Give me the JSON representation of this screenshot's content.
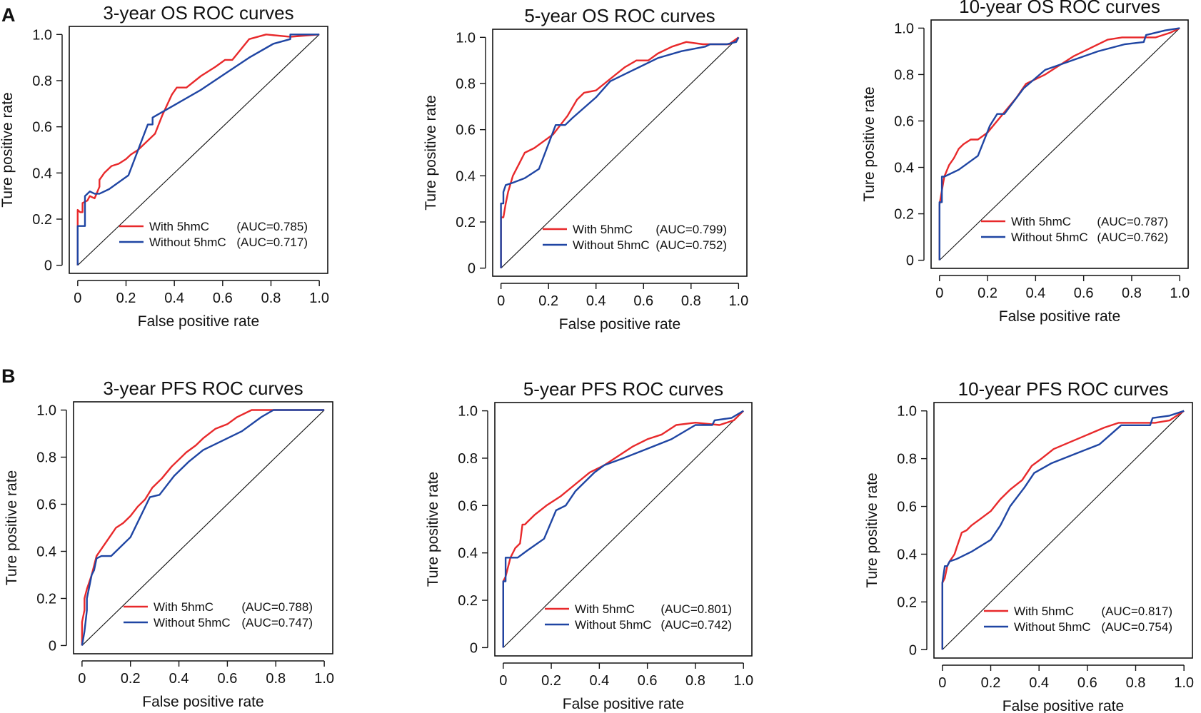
{
  "panels": {
    "a": "A",
    "b": "B"
  },
  "colors": {
    "with": "#e8292b",
    "without": "#1f45a3"
  },
  "common": {
    "xlabel": "False positive rate",
    "ylabel": "Ture positive rate",
    "legend_with": "With 5hmC",
    "legend_without": "Without 5hmC"
  },
  "chart_data": [
    {
      "type": "line",
      "title": "3-year OS ROC curves",
      "xlabel": "False positive rate",
      "ylabel": "Ture positive rate",
      "xlim": [
        0,
        1
      ],
      "ylim": [
        0,
        1
      ],
      "xticks": [
        "0",
        "0.2",
        "0.4",
        "0.6",
        "0.8",
        "1.0"
      ],
      "yticks": [
        "0",
        "0.2",
        "0.4",
        "0.6",
        "0.8",
        "1.0"
      ],
      "legend": "bottom-right",
      "series": [
        {
          "name": "With 5hmC",
          "auc": "(AUC=0.785)",
          "x": [
            0,
            0,
            0.01,
            0.02,
            0.02,
            0.04,
            0.05,
            0.07,
            0.09,
            0.09,
            0.11,
            0.14,
            0.17,
            0.2,
            0.22,
            0.25,
            0.28,
            0.32,
            0.35,
            0.39,
            0.41,
            0.45,
            0.51,
            0.57,
            0.61,
            0.64,
            0.71,
            0.78,
            0.88,
            1.0
          ],
          "y": [
            0,
            0.24,
            0.23,
            0.23,
            0.27,
            0.28,
            0.3,
            0.29,
            0.34,
            0.37,
            0.4,
            0.43,
            0.44,
            0.46,
            0.48,
            0.5,
            0.53,
            0.57,
            0.65,
            0.74,
            0.77,
            0.77,
            0.82,
            0.86,
            0.89,
            0.89,
            0.98,
            1.0,
            0.99,
            1.0
          ]
        },
        {
          "name": "Without 5hmC",
          "auc": "(AUC=0.717)",
          "x": [
            0,
            0,
            0.01,
            0.03,
            0.03,
            0.05,
            0.07,
            0.09,
            0.13,
            0.21,
            0.29,
            0.31,
            0.31,
            0.41,
            0.51,
            0.61,
            0.71,
            0.81,
            0.88,
            0.88,
            1.0
          ],
          "y": [
            0,
            0.17,
            0.17,
            0.17,
            0.3,
            0.32,
            0.31,
            0.31,
            0.33,
            0.39,
            0.61,
            0.61,
            0.64,
            0.7,
            0.76,
            0.83,
            0.9,
            0.96,
            0.98,
            1.0,
            1.0
          ]
        }
      ]
    },
    {
      "type": "line",
      "title": "5-year OS ROC curves",
      "xlabel": "False positive rate",
      "ylabel": "Ture positive rate",
      "xlim": [
        0,
        1
      ],
      "ylim": [
        0,
        1
      ],
      "xticks": [
        "0",
        "0.2",
        "0.4",
        "0.6",
        "0.8",
        "1.0"
      ],
      "yticks": [
        "0",
        "0.2",
        "0.4",
        "0.6",
        "0.8",
        "1.0"
      ],
      "legend": "bottom-right",
      "series": [
        {
          "name": "With 5hmC",
          "auc": "(AUC=0.799)",
          "x": [
            0,
            0,
            0.01,
            0.02,
            0.03,
            0.05,
            0.08,
            0.1,
            0.14,
            0.18,
            0.22,
            0.25,
            0.28,
            0.32,
            0.35,
            0.4,
            0.46,
            0.52,
            0.57,
            0.62,
            0.66,
            0.72,
            0.78,
            0.85,
            0.91,
            0.96,
            1.0
          ],
          "y": [
            0,
            0.22,
            0.22,
            0.28,
            0.33,
            0.4,
            0.46,
            0.5,
            0.52,
            0.55,
            0.58,
            0.62,
            0.66,
            0.73,
            0.76,
            0.77,
            0.82,
            0.87,
            0.9,
            0.9,
            0.93,
            0.96,
            0.98,
            0.97,
            0.97,
            0.97,
            1.0
          ],
          "dash_gap_x": [
            0.14,
            0.18
          ]
        },
        {
          "name": "Without 5hmC",
          "auc": "(AUC=0.752)",
          "x": [
            0,
            0,
            0.01,
            0.01,
            0.02,
            0.05,
            0.1,
            0.16,
            0.23,
            0.27,
            0.3,
            0.4,
            0.46,
            0.56,
            0.66,
            0.76,
            0.86,
            0.88,
            0.95,
            0.99,
            1.0
          ],
          "y": [
            0,
            0.28,
            0.28,
            0.33,
            0.36,
            0.37,
            0.39,
            0.43,
            0.62,
            0.62,
            0.65,
            0.74,
            0.81,
            0.86,
            0.91,
            0.94,
            0.96,
            0.97,
            0.97,
            0.98,
            1.0
          ]
        }
      ]
    },
    {
      "type": "line",
      "title": "10-year OS ROC curves",
      "xlabel": "False positive rate",
      "ylabel": "Ture positive rate",
      "xlim": [
        0,
        1
      ],
      "ylim": [
        0,
        1
      ],
      "xticks": [
        "0",
        "0.2",
        "0.4",
        "0.6",
        "0.8",
        "1.0"
      ],
      "yticks": [
        "0",
        "0.2",
        "0.4",
        "0.6",
        "0.8",
        "1.0"
      ],
      "legend": "bottom-right",
      "series": [
        {
          "name": "With 5hmC",
          "auc": "(AUC=0.787)",
          "x": [
            0,
            0,
            0.01,
            0.02,
            0.04,
            0.06,
            0.08,
            0.1,
            0.13,
            0.16,
            0.2,
            0.24,
            0.28,
            0.32,
            0.36,
            0.44,
            0.5,
            0.56,
            0.62,
            0.7,
            0.76,
            0.84,
            0.9,
            0.96,
            1.0
          ],
          "y": [
            0,
            0.24,
            0.3,
            0.36,
            0.41,
            0.44,
            0.48,
            0.5,
            0.52,
            0.52,
            0.55,
            0.6,
            0.65,
            0.7,
            0.76,
            0.8,
            0.84,
            0.88,
            0.91,
            0.95,
            0.96,
            0.96,
            0.96,
            0.98,
            1.0
          ],
          "dash_gap_x": [
            0.14,
            0.18
          ]
        },
        {
          "name": "Without 5hmC",
          "auc": "(AUC=0.762)",
          "x": [
            0,
            0,
            0.01,
            0.01,
            0.02,
            0.08,
            0.16,
            0.21,
            0.24,
            0.27,
            0.35,
            0.44,
            0.55,
            0.66,
            0.77,
            0.85,
            0.86,
            0.94,
            1.0
          ],
          "y": [
            0,
            0.25,
            0.25,
            0.36,
            0.36,
            0.39,
            0.45,
            0.58,
            0.63,
            0.63,
            0.74,
            0.82,
            0.86,
            0.9,
            0.93,
            0.94,
            0.97,
            0.99,
            1.0
          ]
        }
      ]
    },
    {
      "type": "line",
      "title": "3-year PFS ROC curves",
      "xlabel": "False positive rate",
      "ylabel": "Ture positive rate",
      "xlim": [
        0,
        1
      ],
      "ylim": [
        0,
        1
      ],
      "xticks": [
        "0",
        "0.2",
        "0.4",
        "0.6",
        "0.8",
        "1.0"
      ],
      "yticks": [
        "0",
        "0.2",
        "0.4",
        "0.6",
        "0.8",
        "1.0"
      ],
      "legend": "bottom-right",
      "series": [
        {
          "name": "With 5hmC",
          "auc": "(AUC=0.788)",
          "x": [
            0,
            0,
            0.01,
            0.01,
            0.02,
            0.03,
            0.04,
            0.05,
            0.06,
            0.08,
            0.1,
            0.12,
            0.14,
            0.17,
            0.2,
            0.23,
            0.26,
            0.29,
            0.33,
            0.37,
            0.4,
            0.43,
            0.47,
            0.5,
            0.55,
            0.6,
            0.64,
            0.7,
            0.8,
            1.0
          ],
          "y": [
            0,
            0.1,
            0.15,
            0.2,
            0.24,
            0.27,
            0.3,
            0.34,
            0.38,
            0.41,
            0.44,
            0.47,
            0.5,
            0.52,
            0.55,
            0.59,
            0.62,
            0.67,
            0.71,
            0.76,
            0.79,
            0.82,
            0.85,
            0.88,
            0.92,
            0.94,
            0.97,
            1.0,
            1.0,
            1.0
          ]
        },
        {
          "name": "Without 5hmC",
          "auc": "(AUC=0.747)",
          "x": [
            0,
            0.01,
            0.02,
            0.02,
            0.03,
            0.04,
            0.05,
            0.06,
            0.08,
            0.12,
            0.2,
            0.28,
            0.32,
            0.38,
            0.44,
            0.5,
            0.58,
            0.66,
            0.74,
            0.79,
            1.0
          ],
          "y": [
            0,
            0.06,
            0.15,
            0.2,
            0.25,
            0.3,
            0.32,
            0.37,
            0.38,
            0.38,
            0.46,
            0.63,
            0.64,
            0.72,
            0.78,
            0.83,
            0.87,
            0.91,
            0.97,
            1.0,
            1.0
          ]
        }
      ]
    },
    {
      "type": "line",
      "title": "5-year PFS ROC curves",
      "xlabel": "False positive rate",
      "ylabel": "Ture positive rate",
      "xlim": [
        0,
        1
      ],
      "ylim": [
        0,
        1
      ],
      "xticks": [
        "0",
        "0.2",
        "0.4",
        "0.6",
        "0.8",
        "1.0"
      ],
      "yticks": [
        "0",
        "0.2",
        "0.4",
        "0.6",
        "0.8",
        "1.0"
      ],
      "legend": "bottom-right",
      "series": [
        {
          "name": "With 5hmC",
          "auc": "(AUC=0.801)",
          "x": [
            0,
            0,
            0.01,
            0.02,
            0.03,
            0.05,
            0.07,
            0.08,
            0.09,
            0.1,
            0.13,
            0.18,
            0.24,
            0.3,
            0.36,
            0.42,
            0.48,
            0.54,
            0.6,
            0.66,
            0.72,
            0.8,
            0.9,
            0.96,
            1.0
          ],
          "y": [
            0,
            0.28,
            0.3,
            0.34,
            0.38,
            0.42,
            0.44,
            0.52,
            0.52,
            0.53,
            0.56,
            0.6,
            0.64,
            0.69,
            0.74,
            0.77,
            0.81,
            0.85,
            0.88,
            0.9,
            0.94,
            0.95,
            0.94,
            0.96,
            1.0
          ]
        },
        {
          "name": "Without 5hmC",
          "auc": "(AUC=0.742)",
          "x": [
            0,
            0,
            0.01,
            0.01,
            0.03,
            0.06,
            0.1,
            0.17,
            0.22,
            0.26,
            0.3,
            0.38,
            0.42,
            0.5,
            0.6,
            0.7,
            0.8,
            0.87,
            0.88,
            0.95,
            1.0
          ],
          "y": [
            0,
            0.28,
            0.28,
            0.38,
            0.38,
            0.38,
            0.41,
            0.46,
            0.58,
            0.6,
            0.66,
            0.74,
            0.77,
            0.8,
            0.84,
            0.88,
            0.94,
            0.94,
            0.96,
            0.97,
            1.0
          ]
        }
      ]
    },
    {
      "type": "line",
      "title": "10-year PFS ROC curves",
      "xlabel": "False positive rate",
      "ylabel": "Ture positive rate",
      "xlim": [
        0,
        1
      ],
      "ylim": [
        0,
        1
      ],
      "xticks": [
        "0",
        "0.2",
        "0.4",
        "0.6",
        "0.8",
        "1.0"
      ],
      "yticks": [
        "0",
        "0.2",
        "0.4",
        "0.6",
        "0.8",
        "1.0"
      ],
      "legend": "bottom-right",
      "series": [
        {
          "name": "With 5hmC",
          "auc": "(AUC=0.817)",
          "x": [
            0,
            0,
            0.01,
            0.02,
            0.03,
            0.05,
            0.06,
            0.07,
            0.08,
            0.1,
            0.12,
            0.16,
            0.2,
            0.24,
            0.28,
            0.33,
            0.37,
            0.41,
            0.46,
            0.53,
            0.6,
            0.67,
            0.73,
            0.8,
            0.88,
            0.94,
            1.0
          ],
          "y": [
            0,
            0.28,
            0.3,
            0.35,
            0.37,
            0.4,
            0.43,
            0.46,
            0.49,
            0.5,
            0.52,
            0.55,
            0.58,
            0.63,
            0.67,
            0.71,
            0.77,
            0.8,
            0.84,
            0.87,
            0.9,
            0.93,
            0.95,
            0.95,
            0.95,
            0.96,
            1.0
          ]
        },
        {
          "name": "Without 5hmC",
          "auc": "(AUC=0.754)",
          "x": [
            0,
            0,
            0.01,
            0.02,
            0.03,
            0.06,
            0.12,
            0.2,
            0.24,
            0.28,
            0.34,
            0.38,
            0.45,
            0.55,
            0.65,
            0.74,
            0.8,
            0.86,
            0.87,
            0.94,
            1.0
          ],
          "y": [
            0,
            0.28,
            0.35,
            0.35,
            0.37,
            0.38,
            0.41,
            0.46,
            0.52,
            0.6,
            0.68,
            0.74,
            0.78,
            0.82,
            0.86,
            0.94,
            0.94,
            0.94,
            0.97,
            0.98,
            1.0
          ]
        }
      ]
    }
  ]
}
